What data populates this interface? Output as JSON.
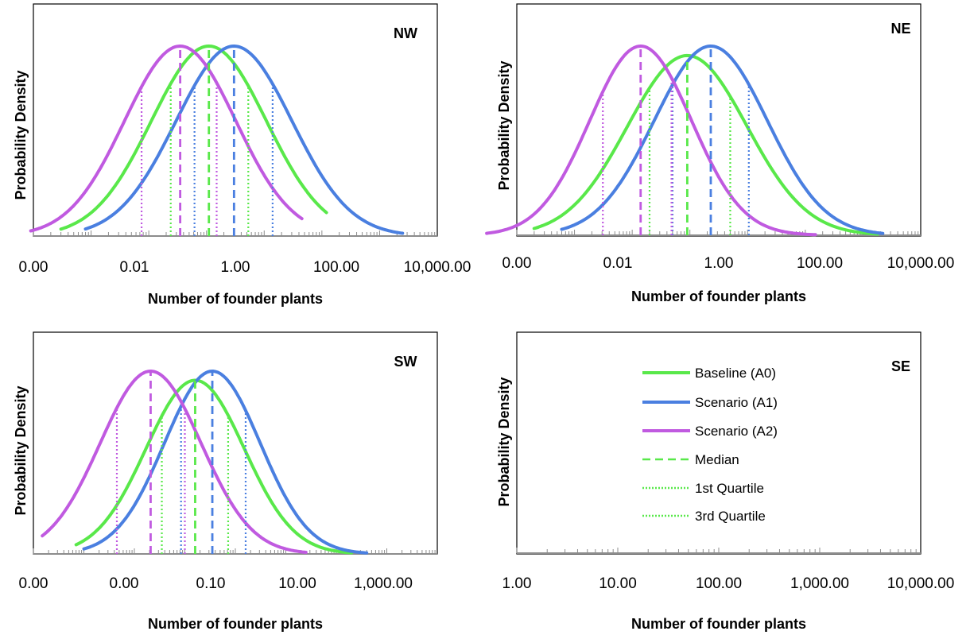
{
  "colors": {
    "baseline": "#59e84a",
    "scenario_a1": "#4a7fe0",
    "scenario_a2": "#c05ae0",
    "axis": "#8c8c8c"
  },
  "legend": [
    {
      "label": "Baseline (A0)",
      "style": "solid",
      "color": "#59e84a"
    },
    {
      "label": "Scenario (A1)",
      "style": "solid",
      "color": "#4a7fe0"
    },
    {
      "label": "Scenario (A2)",
      "style": "solid",
      "color": "#c05ae0"
    },
    {
      "label": "Median",
      "style": "dashed",
      "color": "#59e84a"
    },
    {
      "label": "1st Quartile",
      "style": "dotted",
      "color": "#59e84a"
    },
    {
      "label": "3rd Quartile",
      "style": "dotted",
      "color": "#59e84a"
    }
  ],
  "chart_data": [
    {
      "region": "NW",
      "type": "line",
      "x_scale": "log",
      "xlim": [
        0.001,
        10000
      ],
      "ylabel": "Probability Density",
      "xlabel": "Number of founder plants",
      "tick_labels": [
        "0.00",
        "0.01",
        "1.00",
        "100.00",
        "10,000.00"
      ],
      "tick_values": [
        0.001,
        0.01,
        1,
        100,
        10000
      ],
      "series": [
        {
          "name": "Baseline (A0)",
          "key": "baseline",
          "median": 1.1,
          "q1": 0.24,
          "q3": 5.3,
          "range": [
            0.003,
            120
          ],
          "peak": 1.0
        },
        {
          "name": "Scenario (A1)",
          "key": "scenario_a1",
          "median": 3.0,
          "q1": 0.62,
          "q3": 14,
          "range": [
            0.008,
            2500
          ],
          "peak": 1.0
        },
        {
          "name": "Scenario (A2)",
          "key": "scenario_a2",
          "median": 0.35,
          "q1": 0.075,
          "q3": 1.5,
          "range": [
            0.0009,
            45
          ],
          "peak": 1.0
        }
      ]
    },
    {
      "region": "NE",
      "type": "line",
      "x_scale": "log",
      "xlim": [
        0.001,
        10000
      ],
      "ylabel": "Probability Density",
      "xlabel": "Number of founder plants",
      "tick_labels": [
        "0.00",
        "0.01",
        "1.00",
        "100.00",
        "10,000.00"
      ],
      "tick_values": [
        0.001,
        0.01,
        1,
        100,
        10000
      ],
      "series": [
        {
          "name": "Baseline (A0)",
          "key": "baseline",
          "median": 0.9,
          "q1": 0.2,
          "q3": 5.0,
          "range": [
            0.002,
            1800
          ],
          "peak": 0.95
        },
        {
          "name": "Scenario (A1)",
          "key": "scenario_a1",
          "median": 2.3,
          "q1": 0.5,
          "q3": 10.5,
          "range": [
            0.006,
            2200
          ],
          "peak": 1.0
        },
        {
          "name": "Scenario (A2)",
          "key": "scenario_a2",
          "median": 0.14,
          "q1": 0.031,
          "q3": 0.48,
          "range": [
            0.0003,
            150
          ],
          "peak": 1.0
        }
      ]
    },
    {
      "region": "SW",
      "type": "line",
      "x_scale": "log",
      "xlim": [
        0.0001,
        10000
      ],
      "ylabel": "Probability Density",
      "xlabel": "Number of founder plants",
      "tick_labels": [
        "0.00",
        "0.00",
        "0.10",
        "10.00",
        "1,000.00"
      ],
      "tick_values": [
        0.0001,
        0.001,
        0.1,
        10,
        1000
      ],
      "series": [
        {
          "name": "Baseline (A0)",
          "key": "baseline",
          "median": 0.16,
          "q1": 0.035,
          "q3": 0.72,
          "range": [
            0.0007,
            200
          ],
          "peak": 0.95
        },
        {
          "name": "Scenario (A1)",
          "key": "scenario_a1",
          "median": 0.35,
          "q1": 0.084,
          "q3": 1.6,
          "range": [
            0.001,
            400
          ],
          "peak": 1.0
        },
        {
          "name": "Scenario (A2)",
          "key": "scenario_a2",
          "median": 0.021,
          "q1": 0.0045,
          "q3": 0.1,
          "range": [
            0.00015,
            25
          ],
          "peak": 1.0
        }
      ]
    },
    {
      "region": "SE",
      "type": "line",
      "x_scale": "log",
      "xlim": [
        1,
        10000
      ],
      "ylabel": "Probability Density",
      "xlabel": "Number of founder plants",
      "tick_labels": [
        "1.00",
        "10.00",
        "100.00",
        "1,000.00",
        "10,000.00"
      ],
      "tick_values": [
        1,
        10,
        100,
        1000,
        10000
      ],
      "series": []
    }
  ]
}
